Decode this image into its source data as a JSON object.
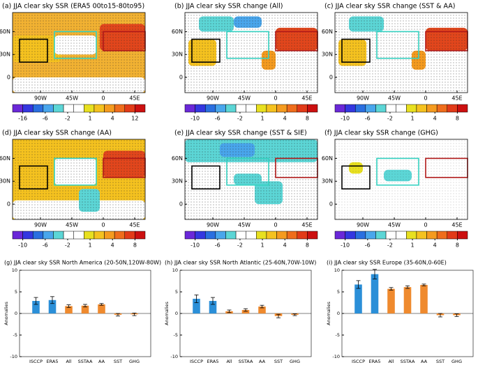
{
  "chart_data": [
    {
      "type": "map",
      "title": "(a) JJA clear sky SSR (ERA5 00to15-80to95)",
      "xlim": [
        -130,
        60
      ],
      "ylim": [
        -20,
        85
      ],
      "xticks": [
        {
          "value": -90,
          "label": "90W"
        },
        {
          "value": -45,
          "label": "45W"
        },
        0,
        {
          "value": 45,
          "label": "45E"
        }
      ],
      "yticks": [
        {
          "value": 60,
          "label": "60N"
        },
        {
          "value": 30,
          "label": "30N"
        },
        0
      ],
      "colorbar_ticks": [
        -16,
        -6,
        -2,
        1,
        4,
        12
      ],
      "colorbar_colors": [
        "#6a28d8",
        "#3437e0",
        "#2a6fe0",
        "#49a6ec",
        "#5cd6d6",
        "#ffffff",
        "#ffffff",
        "#e8e020",
        "#f5c21f",
        "#f59b1f",
        "#ef6d1c",
        "#e23b18",
        "#cc1010"
      ]
    },
    {
      "type": "map",
      "title": "(b) JJA clear sky SSR change (All)",
      "xlim": [
        -130,
        60
      ],
      "ylim": [
        -20,
        85
      ],
      "xticks": [
        {
          "value": -90,
          "label": "90W"
        },
        {
          "value": -45,
          "label": "45W"
        },
        0,
        {
          "value": 45,
          "label": "45E"
        }
      ],
      "yticks": [
        {
          "value": 60,
          "label": "60N"
        },
        {
          "value": 30,
          "label": "30N"
        },
        0
      ],
      "colorbar_ticks": [
        -10,
        -6,
        -2,
        1,
        4,
        8
      ],
      "colorbar_colors": [
        "#6a28d8",
        "#3437e0",
        "#2a6fe0",
        "#49a6ec",
        "#5cd6d6",
        "#ffffff",
        "#ffffff",
        "#e8e020",
        "#f5c21f",
        "#f59b1f",
        "#ef6d1c",
        "#e23b18",
        "#cc1010"
      ]
    },
    {
      "type": "map",
      "title": "(c) JJA clear sky SSR change (SST & AA)",
      "xlim": [
        -130,
        60
      ],
      "ylim": [
        -20,
        85
      ],
      "xticks": [
        {
          "value": -90,
          "label": "90W"
        },
        {
          "value": -45,
          "label": "45W"
        },
        0,
        {
          "value": 45,
          "label": "45E"
        }
      ],
      "yticks": [
        {
          "value": 60,
          "label": "60N"
        },
        {
          "value": 30,
          "label": "30N"
        },
        0
      ],
      "colorbar_ticks": [
        -10,
        -6,
        -2,
        1,
        4,
        8
      ],
      "colorbar_colors": [
        "#6a28d8",
        "#3437e0",
        "#2a6fe0",
        "#49a6ec",
        "#5cd6d6",
        "#ffffff",
        "#ffffff",
        "#e8e020",
        "#f5c21f",
        "#f59b1f",
        "#ef6d1c",
        "#e23b18",
        "#cc1010"
      ]
    },
    {
      "type": "map",
      "title": "(d) JJA clear sky SSR change (AA)",
      "xlim": [
        -130,
        60
      ],
      "ylim": [
        -20,
        85
      ],
      "xticks": [
        {
          "value": -90,
          "label": "90W"
        },
        {
          "value": -45,
          "label": "45W"
        },
        0,
        {
          "value": 45,
          "label": "45E"
        }
      ],
      "yticks": [
        {
          "value": 60,
          "label": "60N"
        },
        {
          "value": 30,
          "label": "30N"
        },
        0
      ],
      "colorbar_ticks": [
        -10,
        -6,
        -2,
        1,
        4,
        8
      ],
      "colorbar_colors": [
        "#6a28d8",
        "#3437e0",
        "#2a6fe0",
        "#49a6ec",
        "#5cd6d6",
        "#ffffff",
        "#ffffff",
        "#e8e020",
        "#f5c21f",
        "#f59b1f",
        "#ef6d1c",
        "#e23b18",
        "#cc1010"
      ]
    },
    {
      "type": "map",
      "title": "(e) JJA clear sky SSR change (SST & SIE)",
      "xlim": [
        -130,
        60
      ],
      "ylim": [
        -20,
        85
      ],
      "xticks": [
        {
          "value": -90,
          "label": "90W"
        },
        {
          "value": -45,
          "label": "45W"
        },
        0,
        {
          "value": 45,
          "label": "45E"
        }
      ],
      "yticks": [
        {
          "value": 60,
          "label": "60N"
        },
        {
          "value": 30,
          "label": "30N"
        },
        0
      ],
      "colorbar_ticks": [
        -10,
        -6,
        -2,
        1,
        4,
        8
      ],
      "colorbar_colors": [
        "#6a28d8",
        "#3437e0",
        "#2a6fe0",
        "#49a6ec",
        "#5cd6d6",
        "#ffffff",
        "#ffffff",
        "#e8e020",
        "#f5c21f",
        "#f59b1f",
        "#ef6d1c",
        "#e23b18",
        "#cc1010"
      ]
    },
    {
      "type": "map",
      "title": "(f) JJA clear sky SSR change (GHG)",
      "xlim": [
        -130,
        60
      ],
      "ylim": [
        -20,
        85
      ],
      "xticks": [
        {
          "value": -90,
          "label": "90W"
        },
        {
          "value": -45,
          "label": "45W"
        },
        0,
        {
          "value": 45,
          "label": "45E"
        }
      ],
      "yticks": [
        {
          "value": 60,
          "label": "60N"
        },
        {
          "value": 30,
          "label": "30N"
        },
        0
      ],
      "colorbar_ticks": [
        -10,
        -6,
        -2,
        1,
        4,
        8
      ],
      "colorbar_colors": [
        "#6a28d8",
        "#3437e0",
        "#2a6fe0",
        "#49a6ec",
        "#5cd6d6",
        "#ffffff",
        "#ffffff",
        "#e8e020",
        "#f5c21f",
        "#f59b1f",
        "#ef6d1c",
        "#e23b18",
        "#cc1010"
      ]
    },
    {
      "type": "bar",
      "title": "(g) JJA clear sky SSR North America (20-50N,120W-80W)",
      "y_label": "Anomalies",
      "categories": [
        "ISCCP",
        "ERA5",
        "All",
        "SSTAA",
        "AA",
        "SST",
        "GHG"
      ],
      "values": [
        2.9,
        3.1,
        1.7,
        1.8,
        2.1,
        -0.3,
        -0.2
      ],
      "errors": [
        0.8,
        0.8,
        0.3,
        0.3,
        0.2,
        0.3,
        0.3
      ],
      "colors": [
        "#2b8fd8",
        "#2b8fd8",
        "#ef8a2e",
        "#ef8a2e",
        "#ef8a2e",
        "#ef8a2e",
        "#ef8a2e"
      ],
      "ylim": [
        -10,
        10
      ],
      "yticks": [
        -10,
        -5,
        0,
        5,
        10
      ]
    },
    {
      "type": "bar",
      "title": "(h) JJA clear sky SSR North Atlantic (25-60N,70W-10W)",
      "y_label": "Anomalies",
      "categories": [
        "ISCCP",
        "ERA5",
        "All",
        "SSTAA",
        "AA",
        "SST",
        "GHG"
      ],
      "values": [
        3.4,
        2.9,
        0.5,
        0.8,
        1.6,
        -0.6,
        -0.3
      ],
      "errors": [
        0.9,
        0.8,
        0.3,
        0.3,
        0.3,
        0.4,
        0.2
      ],
      "colors": [
        "#2b8fd8",
        "#2b8fd8",
        "#ef8a2e",
        "#ef8a2e",
        "#ef8a2e",
        "#ef8a2e",
        "#ef8a2e"
      ],
      "ylim": [
        -10,
        10
      ],
      "yticks": [
        -10,
        -5,
        0,
        5,
        10
      ]
    },
    {
      "type": "bar",
      "title": "(i) JJA clear sky SSR Europe (35-60N,0-60E)",
      "y_label": "Anomalies",
      "categories": [
        "ISCCP",
        "ERA5",
        "All",
        "SSTAA",
        "AA",
        "SST",
        "GHG"
      ],
      "values": [
        6.7,
        9.1,
        5.7,
        6.1,
        6.6,
        -0.4,
        -0.4
      ],
      "errors": [
        0.9,
        1.1,
        0.3,
        0.3,
        0.2,
        0.4,
        0.3
      ],
      "colors": [
        "#2b8fd8",
        "#2b8fd8",
        "#ef8a2e",
        "#ef8a2e",
        "#ef8a2e",
        "#ef8a2e",
        "#ef8a2e"
      ],
      "ylim": [
        -10,
        10
      ],
      "yticks": [
        -10,
        -5,
        0,
        5,
        10
      ]
    }
  ]
}
